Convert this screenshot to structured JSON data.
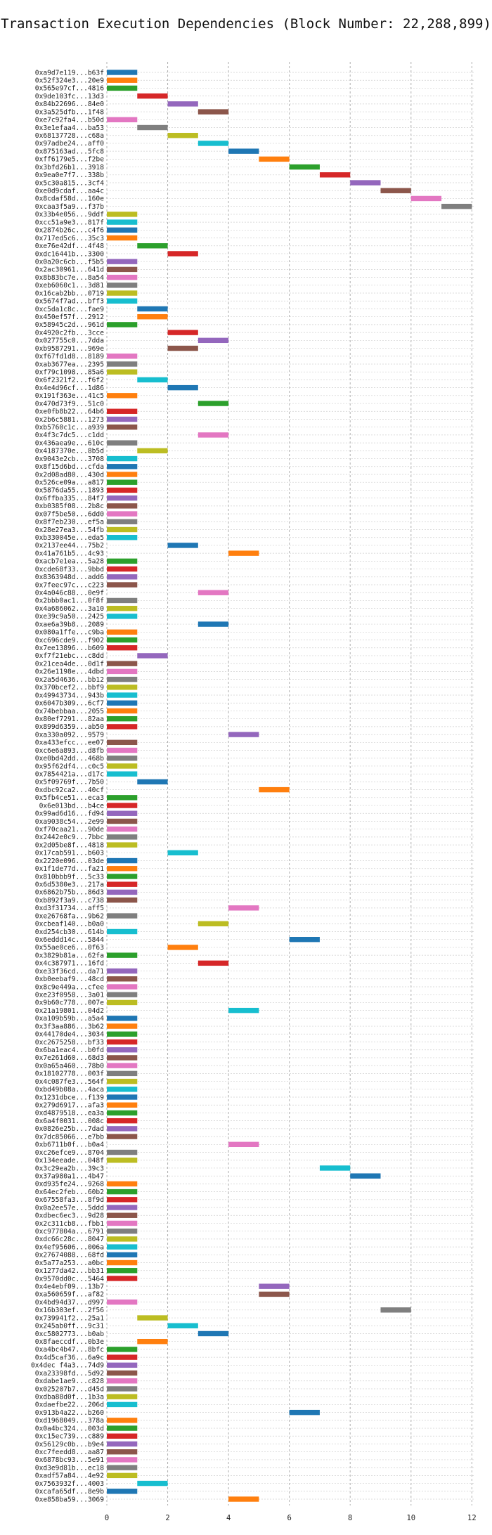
{
  "chart_data": {
    "type": "gantt",
    "title": "Transaction Execution Dependencies (Block Number: 22,288,899)",
    "xlabel": "",
    "ylabel": "",
    "xlim": [
      0,
      12
    ],
    "xticks": [
      0,
      2,
      4,
      6,
      8,
      10,
      12
    ],
    "grid": true,
    "palette": [
      "#1f77b4",
      "#ff7f0e",
      "#2ca02c",
      "#d62728",
      "#9467bd",
      "#8c564b",
      "#e377c2",
      "#7f7f7f",
      "#bcbd22",
      "#17becf"
    ],
    "transactions": [
      {
        "label": "0xa9d7e119...b63f",
        "start": 0
      },
      {
        "label": "0x52f324e3...20e9",
        "start": 0
      },
      {
        "label": "0x565e97cf...4816",
        "start": 0
      },
      {
        "label": "0x9de103fc...13d3",
        "start": 1
      },
      {
        "label": "0x84b22696...84e0",
        "start": 2
      },
      {
        "label": "0x3a525dfb...1f48",
        "start": 3
      },
      {
        "label": "0xe7c92fa4...b50d",
        "start": 0
      },
      {
        "label": "0x3e1efaa4...ba53",
        "start": 1
      },
      {
        "label": "0x68137728...c68a",
        "start": 2
      },
      {
        "label": "0x97adbe24...aff0",
        "start": 3
      },
      {
        "label": "0x875163ad...5fc8",
        "start": 4
      },
      {
        "label": "0xff6179e5...f2be",
        "start": 5
      },
      {
        "label": "0x3bfd26b1...3918",
        "start": 6
      },
      {
        "label": "0x9ea0e7f7...338b",
        "start": 7
      },
      {
        "label": "0x5c30a815...3cf4",
        "start": 8
      },
      {
        "label": "0xe0d9cdaf...aa4c",
        "start": 9
      },
      {
        "label": "0x8cdaf58d...160e",
        "start": 10
      },
      {
        "label": "0xcaa3f5a9...f37b",
        "start": 11
      },
      {
        "label": "0x33b4e056...9ddf",
        "start": 0
      },
      {
        "label": "0xcc51a9e3...817f",
        "start": 0
      },
      {
        "label": "0x2874b26c...c4f6",
        "start": 0
      },
      {
        "label": "0x717ed5c6...35c3",
        "start": 0
      },
      {
        "label": "0xe76e42df...4f48",
        "start": 1
      },
      {
        "label": "0xdc16441b...3300",
        "start": 2
      },
      {
        "label": "0x0a20c6cb...f5b5",
        "start": 0
      },
      {
        "label": "0x2ac30961...641d",
        "start": 0
      },
      {
        "label": "0x8b83bc7e...8a54",
        "start": 0
      },
      {
        "label": "0xeb6060c1...3d81",
        "start": 0
      },
      {
        "label": "0x16cab2bb...0719",
        "start": 0
      },
      {
        "label": "0x5674f7ad...bff3",
        "start": 0
      },
      {
        "label": "0xc5da1c8c...fae9",
        "start": 1
      },
      {
        "label": "0x450ef57f...2912",
        "start": 1
      },
      {
        "label": "0x58945c2d...961d",
        "start": 0
      },
      {
        "label": "0x4920c2fb...3cce",
        "start": 2
      },
      {
        "label": "0x027755c0...7dda",
        "start": 3
      },
      {
        "label": "0xb9587291...969e",
        "start": 2
      },
      {
        "label": "0xf67fd1d8...8189",
        "start": 0
      },
      {
        "label": "0xab3677ea...2395",
        "start": 0
      },
      {
        "label": "0xf79c1098...85a6",
        "start": 0
      },
      {
        "label": "0x6f2321f2...f6f2",
        "start": 1
      },
      {
        "label": "0x4e4d96cf...1d86",
        "start": 2
      },
      {
        "label": "0x191f363e...41c5",
        "start": 0
      },
      {
        "label": "0x470d73f9...51c0",
        "start": 3
      },
      {
        "label": "0xe0fb8b22...64b6",
        "start": 0
      },
      {
        "label": "0x2b6c5881...1273",
        "start": 0
      },
      {
        "label": "0xb5760c1c...a939",
        "start": 0
      },
      {
        "label": "0x4f3c7dc5...c1dd",
        "start": 3
      },
      {
        "label": "0x436aea9e...610c",
        "start": 0
      },
      {
        "label": "0x4187370e...8b5d",
        "start": 1
      },
      {
        "label": "0x9043e2cb...3708",
        "start": 0
      },
      {
        "label": "0x8f15d6bd...cfda",
        "start": 0
      },
      {
        "label": "0x2d08ad80...430d",
        "start": 0
      },
      {
        "label": "0x526ce09a...a817",
        "start": 0
      },
      {
        "label": "0x5876da55...1893",
        "start": 0
      },
      {
        "label": "0x6ffba335...84f7",
        "start": 0
      },
      {
        "label": "0xb0385f08...2b8c",
        "start": 0
      },
      {
        "label": "0x07f5be50...6dd0",
        "start": 0
      },
      {
        "label": "0x8f7eb230...ef5a",
        "start": 0
      },
      {
        "label": "0x28e27ea3...54fb",
        "start": 0
      },
      {
        "label": "0xb330045e...eda5",
        "start": 0
      },
      {
        "label": "0x2137ee44...75b2",
        "start": 2
      },
      {
        "label": "0x41a761b5...4c93",
        "start": 4
      },
      {
        "label": "0xacb7e1ea...5a28",
        "start": 0
      },
      {
        "label": "0xcde68f33...9bbd",
        "start": 0
      },
      {
        "label": "0x8363948d...add6",
        "start": 0
      },
      {
        "label": "0x7feec97c...c223",
        "start": 0
      },
      {
        "label": "0x4a046c88...0e9f",
        "start": 3
      },
      {
        "label": "0x2bbb0ac1...0f8f",
        "start": 0
      },
      {
        "label": "0x4a686062...3a10",
        "start": 0
      },
      {
        "label": "0xe39c9a50...2425",
        "start": 0
      },
      {
        "label": "0xae6a39b8...2089",
        "start": 3
      },
      {
        "label": "0x080a1ffe...c9ba",
        "start": 0
      },
      {
        "label": "0xc696cde9...f902",
        "start": 0
      },
      {
        "label": "0x7ee13896...b609",
        "start": 0
      },
      {
        "label": "0xf7f21ebc...c8dd",
        "start": 1
      },
      {
        "label": "0x21cea4de...0d1f",
        "start": 0
      },
      {
        "label": "0x26e1198e...4dbd",
        "start": 0
      },
      {
        "label": "0x2a5d4636...bb12",
        "start": 0
      },
      {
        "label": "0x370bcef2...bbf9",
        "start": 0
      },
      {
        "label": "0x49943734...943b",
        "start": 0
      },
      {
        "label": "0x6047b309...6cf7",
        "start": 0
      },
      {
        "label": "0x74bebbaa...2055",
        "start": 0
      },
      {
        "label": "0x80ef7291...82aa",
        "start": 0
      },
      {
        "label": "0x899d6359...ab50",
        "start": 0
      },
      {
        "label": "0xa330a092...9579",
        "start": 4
      },
      {
        "label": "0xa433efcc...ee07",
        "start": 0
      },
      {
        "label": "0xc6e6a893...d8fb",
        "start": 0
      },
      {
        "label": "0xe0bd42dd...468b",
        "start": 0
      },
      {
        "label": "0x95f62df4...c0c5",
        "start": 0
      },
      {
        "label": "0x7854421a...d17c",
        "start": 0
      },
      {
        "label": "0x5f09769f...7b50",
        "start": 1
      },
      {
        "label": "0xdbc92ca2...40cf",
        "start": 5
      },
      {
        "label": "0x5fb4ce51...eca3",
        "start": 0
      },
      {
        "label": "0x6e013bd...b4ce",
        "start": 0
      },
      {
        "label": "0x99ad6d16...fd94",
        "start": 0
      },
      {
        "label": "0xa9038c54...2e99",
        "start": 0
      },
      {
        "label": "0xf70caa21...90de",
        "start": 0
      },
      {
        "label": "0x2442e0c9...7bbc",
        "start": 0
      },
      {
        "label": "0x2d05be8f...4818",
        "start": 0
      },
      {
        "label": "0x17cab591...b603",
        "start": 2
      },
      {
        "label": "0x2220e096...03de",
        "start": 0
      },
      {
        "label": "0x1f1de77d...fa21",
        "start": 0
      },
      {
        "label": "0x810bbb9f...5c33",
        "start": 0
      },
      {
        "label": "0x6d5380e3...217a",
        "start": 0
      },
      {
        "label": "0x6862b75b...86d3",
        "start": 0
      },
      {
        "label": "0xb892f3a9...c738",
        "start": 0
      },
      {
        "label": "0xd3f31734...aff5",
        "start": 4
      },
      {
        "label": "0xe26768fa...9b62",
        "start": 0
      },
      {
        "label": "0xcbeaf140...b0a0",
        "start": 3
      },
      {
        "label": "0xd254cb30...614b",
        "start": 0
      },
      {
        "label": "0x6eddd14c...5844",
        "start": 6
      },
      {
        "label": "0x55ae0ce6...0f63",
        "start": 2
      },
      {
        "label": "0x3829b81a...62fa",
        "start": 0
      },
      {
        "label": "0x4c387971...16fd",
        "start": 3
      },
      {
        "label": "0xe33f36cd...da71",
        "start": 0
      },
      {
        "label": "0xb0eebaf9...48cd",
        "start": 0
      },
      {
        "label": "0x8c9e449a...cfee",
        "start": 0
      },
      {
        "label": "0xe23f0958...3a01",
        "start": 0
      },
      {
        "label": "0x9b60c778...007e",
        "start": 0
      },
      {
        "label": "0x21a19801...04d2",
        "start": 4
      },
      {
        "label": "0xa109b59b...a5a4",
        "start": 0
      },
      {
        "label": "0x3f3aa886...3b62",
        "start": 0
      },
      {
        "label": "0x44170de4...3034",
        "start": 0
      },
      {
        "label": "0xc2675258...bf33",
        "start": 0
      },
      {
        "label": "0x6ba1eac4...b0fd",
        "start": 0
      },
      {
        "label": "0x7e261d60...68d3",
        "start": 0
      },
      {
        "label": "0x0a65a460...78b0",
        "start": 0
      },
      {
        "label": "0x18102778...003f",
        "start": 0
      },
      {
        "label": "0x4c087fe3...564f",
        "start": 0
      },
      {
        "label": "0xbd49b08a...4aca",
        "start": 0
      },
      {
        "label": "0x1231dbce...f139",
        "start": 0
      },
      {
        "label": "0x279d6917...afa3",
        "start": 0
      },
      {
        "label": "0xd4879518...ea3a",
        "start": 0
      },
      {
        "label": "0x6a4f0031...008c",
        "start": 0
      },
      {
        "label": "0x0826e25b...7dad",
        "start": 0
      },
      {
        "label": "0x7dc85066...e7bb",
        "start": 0
      },
      {
        "label": "0xb6711b0f...b0a4",
        "start": 4
      },
      {
        "label": "0xc26efce9...8704",
        "start": 0
      },
      {
        "label": "0x134eeade...048f",
        "start": 0
      },
      {
        "label": "0x3c29ea2b...39c3",
        "start": 7
      },
      {
        "label": "0x37a980a1...4b47",
        "start": 8
      },
      {
        "label": "0xd935fe24...9268",
        "start": 0
      },
      {
        "label": "0x64ec2feb...60b2",
        "start": 0
      },
      {
        "label": "0x67558fa3...8f9d",
        "start": 0
      },
      {
        "label": "0x0a2ee57e...5ddd",
        "start": 0
      },
      {
        "label": "0xdbec6ec3...9d28",
        "start": 0
      },
      {
        "label": "0x2c311cb8...fbb1",
        "start": 0
      },
      {
        "label": "0xc977804a...6791",
        "start": 0
      },
      {
        "label": "0xdc66c28c...8047",
        "start": 0
      },
      {
        "label": "0x4ef95606...006a",
        "start": 0
      },
      {
        "label": "0x27674088...68fd",
        "start": 0
      },
      {
        "label": "0x5a77a253...a0bc",
        "start": 0
      },
      {
        "label": "0x1277da42...bb31",
        "start": 0
      },
      {
        "label": "0x9570dd0c...5464",
        "start": 0
      },
      {
        "label": "0x4e4ebf09...13b7",
        "start": 5
      },
      {
        "label": "0xa560659f...af82",
        "start": 5
      },
      {
        "label": "0x4bd94d37...d997",
        "start": 0
      },
      {
        "label": "0x16b303ef...2f56",
        "start": 9
      },
      {
        "label": "0x739941f2...25a1",
        "start": 1
      },
      {
        "label": "0x245ab0ff...9c31",
        "start": 2
      },
      {
        "label": "0xc5802773...b0ab",
        "start": 3
      },
      {
        "label": "0x8faeccdf...0b3e",
        "start": 1
      },
      {
        "label": "0xa4bc4b47...8bfc",
        "start": 0
      },
      {
        "label": "0x4d5caf36...6a9c",
        "start": 0
      },
      {
        "label": "0x4dec f4a3...74d9",
        "start": 0
      },
      {
        "label": "0xa23398fd...5d92",
        "start": 0
      },
      {
        "label": "0xdabe1ae9...c828",
        "start": 0
      },
      {
        "label": "0x025207b7...d45d",
        "start": 0
      },
      {
        "label": "0xdba88d0f...1b3a",
        "start": 0
      },
      {
        "label": "0xdaefbe22...206d",
        "start": 0
      },
      {
        "label": "0x913b4a22...b260",
        "start": 6
      },
      {
        "label": "0xd1968049...378a",
        "start": 0
      },
      {
        "label": "0x0a4bc324...003d",
        "start": 0
      },
      {
        "label": "0xc15ec739...c889",
        "start": 0
      },
      {
        "label": "0x56129c0b...b9e4",
        "start": 0
      },
      {
        "label": "0xc7feedd8...aa87",
        "start": 0
      },
      {
        "label": "0x6878bc93...5e91",
        "start": 0
      },
      {
        "label": "0xd3e9d81b...ec18",
        "start": 0
      },
      {
        "label": "0xadf57a84...4e92",
        "start": 0
      },
      {
        "label": "0x7563932f...4003",
        "start": 1
      },
      {
        "label": "0xcafa65df...8e9b",
        "start": 0
      },
      {
        "label": "0xe858ba59...3069",
        "start": 4
      }
    ]
  }
}
